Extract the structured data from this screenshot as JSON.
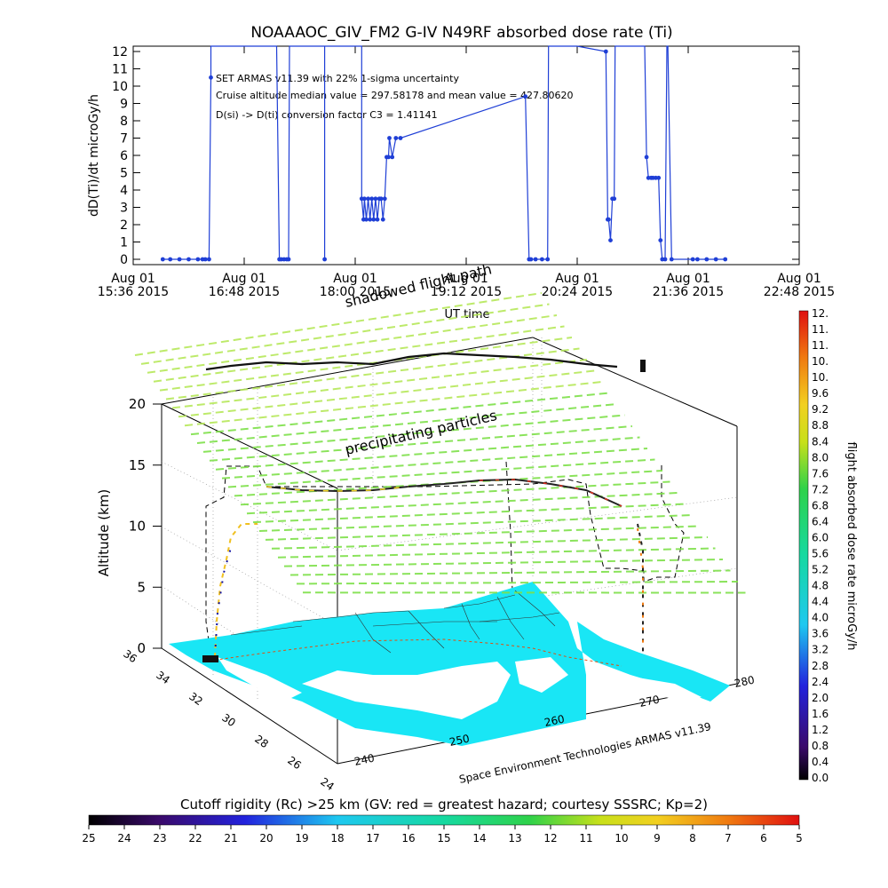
{
  "chart_data": [
    {
      "type": "line",
      "title": "NOAAAOC_GIV_FM2 G-IV    N49RF  absorbed dose rate (Ti)",
      "xlabel": "UT time",
      "ylabel": "dD(Ti)/dt microGy/h",
      "ylim": [
        0,
        12
      ],
      "yticks": [
        0,
        1,
        2,
        3,
        4,
        5,
        6,
        7,
        8,
        9,
        10,
        11,
        12
      ],
      "xticks": [
        {
          "hours": 15.6,
          "date": "Aug 01",
          "time": "15:36 2015"
        },
        {
          "hours": 16.8,
          "date": "Aug 01",
          "time": "16:48 2015"
        },
        {
          "hours": 18.0,
          "date": "Aug 01",
          "time": "18:00 2015"
        },
        {
          "hours": 19.2,
          "date": "Aug 01",
          "time": "19:12 2015"
        },
        {
          "hours": 20.4,
          "date": "Aug 01",
          "time": "20:24 2015"
        },
        {
          "hours": 21.6,
          "date": "Aug 01",
          "time": "21:36 2015"
        },
        {
          "hours": 22.8,
          "date": "Aug 01",
          "time": "22:48 2015"
        }
      ],
      "xlim": [
        15.6,
        22.8
      ],
      "annotations": [
        "SET ARMAS v11.39 with 22% 1-sigma uncertainty",
        "Cruise altitude median value = 297.58178 and mean value = 427.80620",
        "D(si) -> D(ti) conversion factor C3 = 1.41141"
      ],
      "series": [
        {
          "color": "#1f3fd6",
          "x": [
            15.92,
            16.0,
            16.1,
            16.2,
            16.3,
            16.35,
            16.38,
            16.42,
            16.44,
            16.44,
            17.15,
            17.18,
            17.2,
            17.23,
            17.26,
            17.28,
            17.29,
            17.67,
            17.67,
            17.67,
            18.07,
            18.07,
            18.09,
            18.1,
            18.12,
            18.14,
            18.16,
            18.18,
            18.2,
            18.22,
            18.24,
            18.26,
            18.28,
            18.3,
            18.32,
            18.34,
            18.36,
            18.37,
            18.4,
            18.44,
            18.49,
            19.84,
            19.88,
            19.9,
            19.95,
            20.02,
            20.08,
            20.09,
            20.4,
            20.71,
            20.73,
            20.74,
            20.76,
            20.78,
            20.8,
            20.81,
            21.13,
            21.15,
            21.17,
            21.2,
            21.22,
            21.25,
            21.28,
            21.3,
            21.32,
            21.35,
            21.37,
            21.38,
            21.42,
            21.65,
            21.7,
            21.8,
            21.9,
            22.0
          ],
          "y": [
            0,
            0,
            0,
            0,
            0,
            0,
            0,
            0,
            10.5,
            14,
            14,
            0,
            0,
            0,
            0,
            0,
            14,
            14,
            0,
            14,
            14,
            3.5,
            2.3,
            3.5,
            2.3,
            3.5,
            2.3,
            3.5,
            2.3,
            3.5,
            2.3,
            3.5,
            3.5,
            2.3,
            3.5,
            5.9,
            5.9,
            7.0,
            5.9,
            7.0,
            7.0,
            9.4,
            0,
            0,
            0,
            0,
            0,
            14,
            14,
            12,
            2.3,
            2.3,
            1.1,
            3.5,
            3.5,
            14,
            14,
            5.9,
            4.7,
            4.7,
            4.7,
            4.7,
            4.7,
            1.1,
            0,
            0,
            14,
            14,
            0,
            0,
            0,
            0,
            0,
            0
          ]
        }
      ]
    },
    {
      "type": "scatter",
      "subtype": "3d-altitude-track",
      "ylabel": "Altitude (km)",
      "zlim": [
        0,
        20
      ],
      "zticks": [
        0,
        5,
        10,
        15,
        20
      ],
      "lat_ticks": [
        "36",
        "34",
        "32",
        "30",
        "28",
        "26",
        "24"
      ],
      "lon_ticks": [
        "240",
        "250",
        "260",
        "270",
        "280"
      ],
      "annotations": [
        "shadowed flight path",
        "precipitating particles"
      ],
      "credit": "Space Environment Technologies ARMAS v11.39",
      "legend": "right",
      "dose_colorbar": {
        "label": "flight absorbed dose rate microGy/h",
        "ticks": [
          "0.0",
          "0.4",
          "0.8",
          "1.2",
          "1.6",
          "2.0",
          "2.4",
          "2.8",
          "3.2",
          "3.6",
          "4.0",
          "4.4",
          "4.8",
          "5.2",
          "5.6",
          "6.0",
          "6.4",
          "6.8",
          "7.2",
          "7.6",
          "8.0",
          "8.4",
          "8.8",
          "9.2",
          "9.6",
          "10.",
          "10.",
          "11.",
          "11.",
          "12."
        ]
      },
      "rigidity_colorbar": {
        "label": "Cutoff rigidity (Rc) >25 km (GV: red = greatest hazard; courtesy SSSRC; Kp=2)",
        "ticks": [
          "25",
          "24",
          "23",
          "22",
          "21",
          "20",
          "19",
          "18",
          "17",
          "16",
          "15",
          "14",
          "13",
          "12",
          "11",
          "10",
          "9",
          "8",
          "7",
          "6",
          "5"
        ]
      },
      "colors": {
        "ocean_map": "#19e6f5",
        "precip_lines": "#7ee04a",
        "precip_lines_far": "#b6e85a",
        "flight_path": "#000000",
        "top_track": "#111111"
      }
    }
  ]
}
